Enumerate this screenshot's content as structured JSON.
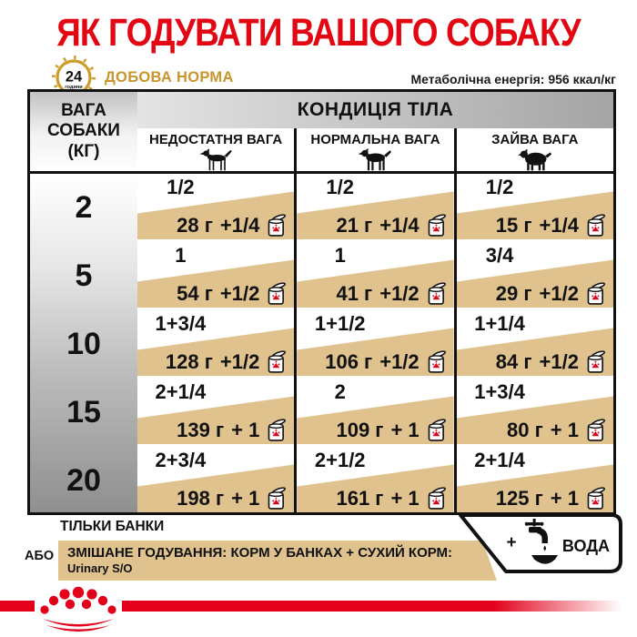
{
  "title": "ЯК ГОДУВАТИ ВАШОГО СОБАКУ",
  "header": {
    "clock": {
      "hours": "24",
      "unit": "години"
    },
    "daily_label": "ДОБОВА НОРМА",
    "energy": "Метаболічна енергія: 956 ккал/кг"
  },
  "table": {
    "weight_header_lines": [
      "ВАГА",
      "СОБАКИ",
      "(КГ)"
    ],
    "condition_header": "КОНДИЦІЯ ТІЛА",
    "columns": [
      {
        "label": "НЕДОСТАТНЯ ВАГА",
        "icon": "thin-dog-icon"
      },
      {
        "label": "НОРМАЛЬНА ВАГА",
        "icon": "normal-dog-icon"
      },
      {
        "label": "ЗАЙВА ВАГА",
        "icon": "fat-dog-icon"
      }
    ],
    "rows": [
      {
        "weight": "2",
        "cells": [
          {
            "cans": "1/2",
            "grams": "28 г",
            "plus": "+1/4"
          },
          {
            "cans": "1/2",
            "grams": "21 г",
            "plus": "+1/4"
          },
          {
            "cans": "1/2",
            "grams": "15 г",
            "plus": "+1/4"
          }
        ]
      },
      {
        "weight": "5",
        "cells": [
          {
            "cans": "1",
            "grams": "54 г",
            "plus": "+1/2"
          },
          {
            "cans": "1",
            "grams": "41 г",
            "plus": "+1/2"
          },
          {
            "cans": "3/4",
            "grams": "29 г",
            "plus": "+1/2"
          }
        ]
      },
      {
        "weight": "10",
        "cells": [
          {
            "cans": "1+3/4",
            "grams": "128 г",
            "plus": "+1/2"
          },
          {
            "cans": "1+1/2",
            "grams": "106 г",
            "plus": "+1/2"
          },
          {
            "cans": "1+1/4",
            "grams": "84 г",
            "plus": "+1/2"
          }
        ]
      },
      {
        "weight": "15",
        "cells": [
          {
            "cans": "2+1/4",
            "grams": "139 г",
            "plus": "+ 1"
          },
          {
            "cans": "2",
            "grams": "109 г",
            "plus": "+ 1"
          },
          {
            "cans": "1+3/4",
            "grams": "80 г",
            "plus": "+ 1"
          }
        ]
      },
      {
        "weight": "20",
        "cells": [
          {
            "cans": "2+3/4",
            "grams": "198 г",
            "plus": "+ 1"
          },
          {
            "cans": "2+1/2",
            "grams": "161 г",
            "plus": "+ 1"
          },
          {
            "cans": "2+1/4",
            "grams": "125 г",
            "plus": "+ 1"
          }
        ]
      }
    ]
  },
  "legend": {
    "cans_only": "ТІЛЬКИ БАНКИ",
    "or": "АБО",
    "mixed": "ЗМІШАНЕ ГОДУВАННЯ: КОРМ У БАНКАХ + СУХИЙ КОРМ:",
    "product": "Urinary S/O",
    "water_plus": "+",
    "water": "ВОДА"
  },
  "icons": {
    "clock": "24-hour-clock",
    "underweight_dog": "thin-dog-silhouette",
    "normal_dog": "normal-dog-silhouette",
    "overweight_dog": "fat-dog-silhouette",
    "can": "wet-food-can-with-red-crown",
    "water": "faucet-over-bowl",
    "logo": "royal-canin-crown"
  },
  "colors": {
    "brand_red": "#E30613",
    "bar_red": "#E2001A",
    "gold": "#C9952D",
    "tan_band": "#DFC28D",
    "table_black": "#111111"
  }
}
